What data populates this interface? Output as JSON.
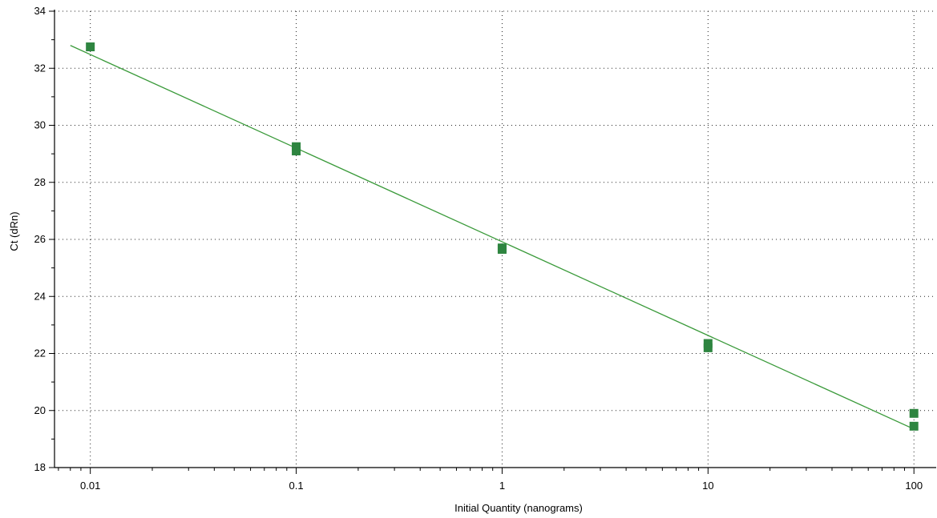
{
  "chart_data": {
    "type": "scatter",
    "title": "",
    "xlabel": "Initial Quantity (nanograms)",
    "ylabel": "Ct (dRn)",
    "x_scale": "log",
    "xlim": [
      0.0067,
      126
    ],
    "ylim": [
      18,
      34
    ],
    "x_ticks": [
      0.01,
      0.1,
      1,
      10,
      100
    ],
    "x_tick_labels": [
      "0.01",
      "0.1",
      "1",
      "10",
      "100"
    ],
    "y_ticks": [
      18,
      20,
      22,
      24,
      26,
      28,
      30,
      32,
      34
    ],
    "y_tick_labels": [
      "18",
      "20",
      "22",
      "24",
      "26",
      "28",
      "30",
      "32",
      "34"
    ],
    "grid": true,
    "points": [
      {
        "x": 0.01,
        "y": 32.75
      },
      {
        "x": 0.1,
        "y": 29.25
      },
      {
        "x": 0.1,
        "y": 29.1
      },
      {
        "x": 1,
        "y": 25.7
      },
      {
        "x": 1,
        "y": 25.65
      },
      {
        "x": 10,
        "y": 22.35
      },
      {
        "x": 10,
        "y": 22.2
      },
      {
        "x": 100,
        "y": 19.9
      },
      {
        "x": 100,
        "y": 19.45
      }
    ],
    "fit_line": {
      "x": [
        0.008,
        100
      ],
      "y": [
        32.8,
        19.35
      ]
    },
    "colors": {
      "marker": "#2e8540",
      "line": "#3a9a3a",
      "grid": "#222222"
    }
  }
}
